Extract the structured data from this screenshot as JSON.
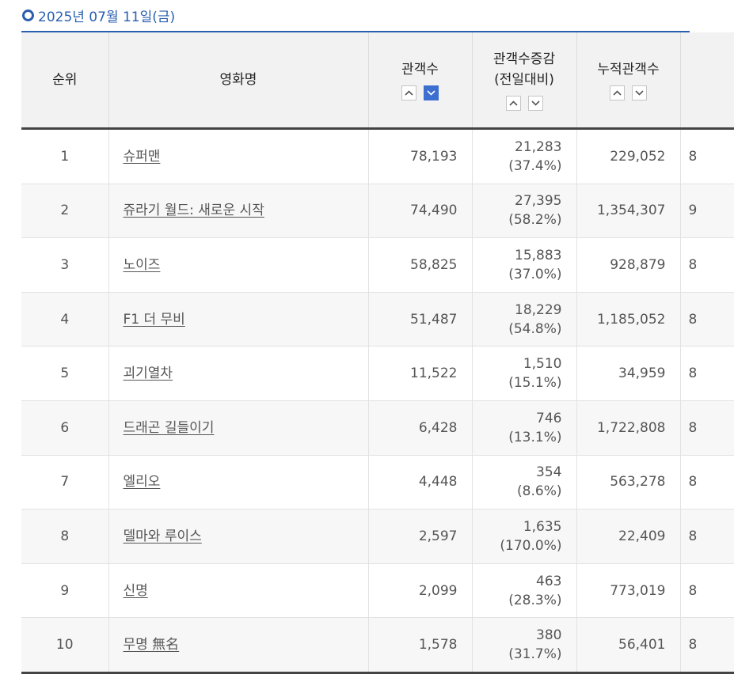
{
  "date_heading": "2025년 07월 11일(금)",
  "columns": {
    "rank": "순위",
    "title": "영화명",
    "audience": "관객수",
    "change_line1": "관객수증감",
    "change_line2": "(전일대비)",
    "cumulative": "누적관객수"
  },
  "icons": {
    "sort_up": "chevron-up-icon",
    "sort_down": "chevron-down-icon"
  },
  "colors": {
    "accent": "#2a5fb0",
    "active_sort": "#3d6fd1"
  },
  "rows": [
    {
      "rank": "1",
      "title": "슈퍼맨",
      "audience": "78,193",
      "change": "21,283",
      "change_pct": "(37.4%)",
      "cumulative": "229,052",
      "extra": "8"
    },
    {
      "rank": "2",
      "title": "쥬라기 월드: 새로운 시작",
      "audience": "74,490",
      "change": "27,395",
      "change_pct": "(58.2%)",
      "cumulative": "1,354,307",
      "extra": "9"
    },
    {
      "rank": "3",
      "title": "노이즈",
      "audience": "58,825",
      "change": "15,883",
      "change_pct": "(37.0%)",
      "cumulative": "928,879",
      "extra": "8"
    },
    {
      "rank": "4",
      "title": "F1 더 무비",
      "audience": "51,487",
      "change": "18,229",
      "change_pct": "(54.8%)",
      "cumulative": "1,185,052",
      "extra": "8"
    },
    {
      "rank": "5",
      "title": "괴기열차",
      "audience": "11,522",
      "change": "1,510",
      "change_pct": "(15.1%)",
      "cumulative": "34,959",
      "extra": "8"
    },
    {
      "rank": "6",
      "title": "드래곤 길들이기",
      "audience": "6,428",
      "change": "746",
      "change_pct": "(13.1%)",
      "cumulative": "1,722,808",
      "extra": "8"
    },
    {
      "rank": "7",
      "title": "엘리오",
      "audience": "4,448",
      "change": "354",
      "change_pct": "(8.6%)",
      "cumulative": "563,278",
      "extra": "8"
    },
    {
      "rank": "8",
      "title": "델마와 루이스",
      "audience": "2,597",
      "change": "1,635",
      "change_pct": "(170.0%)",
      "cumulative": "22,409",
      "extra": "8"
    },
    {
      "rank": "9",
      "title": "신명",
      "audience": "2,099",
      "change": "463",
      "change_pct": "(28.3%)",
      "cumulative": "773,019",
      "extra": "8"
    },
    {
      "rank": "10",
      "title": "무명 無名",
      "audience": "1,578",
      "change": "380",
      "change_pct": "(31.7%)",
      "cumulative": "56,401",
      "extra": "8"
    }
  ]
}
